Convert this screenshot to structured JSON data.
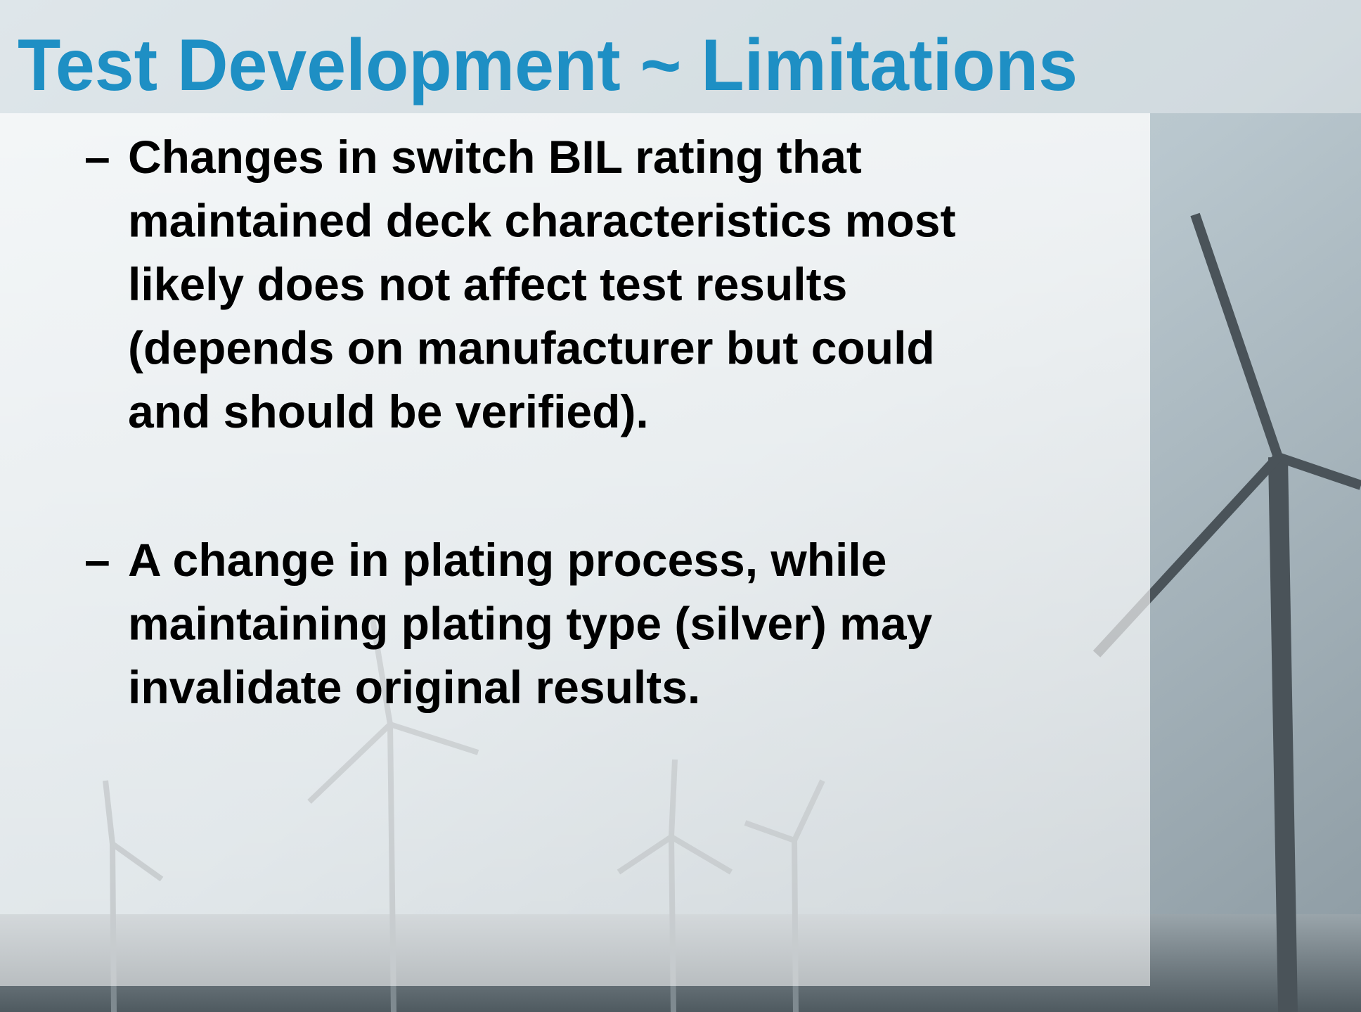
{
  "header": {
    "title": "Test Development ~ Limitations"
  },
  "bullets": [
    {
      "marker": "–",
      "lines": [
        "Changes in switch BIL rating that",
        "maintained deck characteristics most",
        "likely does not affect test results",
        "(depends on manufacturer but could",
        "and should be verified)."
      ]
    },
    {
      "marker": "–",
      "lines": [
        "A change in plating process, while",
        "maintaining plating type (silver) may",
        "invalidate original results."
      ]
    }
  ]
}
